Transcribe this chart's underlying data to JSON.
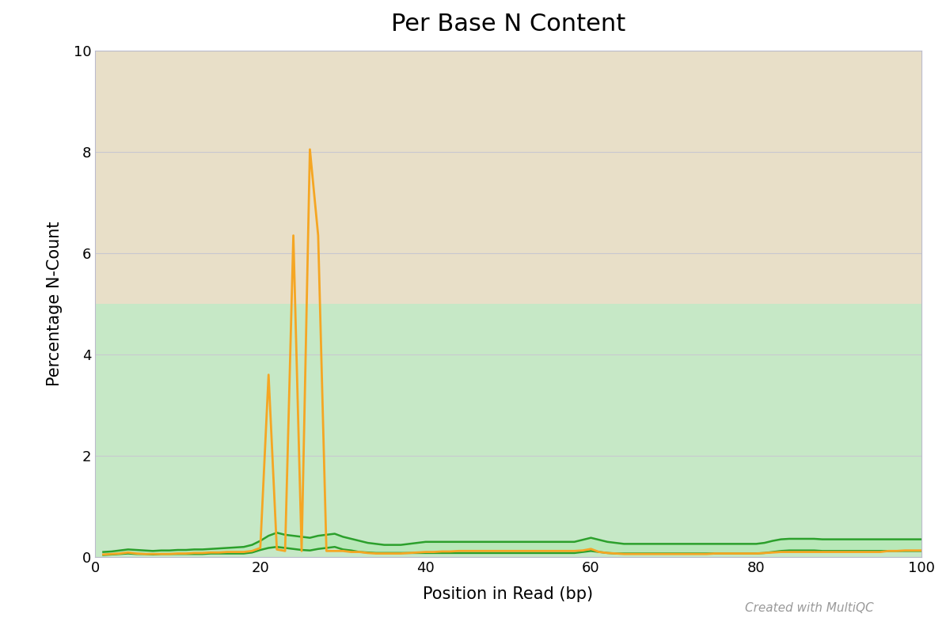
{
  "title": "Per Base N Content",
  "xlabel": "Position in Read (bp)",
  "ylabel": "Percentage N-Count",
  "xlim": [
    1,
    100
  ],
  "ylim": [
    0,
    10
  ],
  "yticks": [
    0,
    2,
    4,
    6,
    8,
    10
  ],
  "xticks": [
    0,
    20,
    40,
    60,
    80,
    100
  ],
  "zone_warn_color": "#e8dfc8",
  "zone_pass_color": "#c6e8c6",
  "zone_pass_limit": 5,
  "zone_warn_limit": 10,
  "grid_color": "#c8c8d0",
  "orange_line_color": "#f5a623",
  "green_line_color": "#2ca02c",
  "green_fill_color": "#b8e8b8",
  "watermark": "Created with MultiQC",
  "title_fontsize": 22,
  "label_fontsize": 15,
  "tick_fontsize": 13,
  "watermark_fontsize": 11,
  "orange_series": [
    [
      1,
      0.05
    ],
    [
      2,
      0.06
    ],
    [
      3,
      0.07
    ],
    [
      4,
      0.09
    ],
    [
      5,
      0.07
    ],
    [
      6,
      0.06
    ],
    [
      7,
      0.06
    ],
    [
      8,
      0.06
    ],
    [
      9,
      0.06
    ],
    [
      10,
      0.07
    ],
    [
      11,
      0.07
    ],
    [
      12,
      0.08
    ],
    [
      13,
      0.08
    ],
    [
      14,
      0.09
    ],
    [
      15,
      0.09
    ],
    [
      16,
      0.1
    ],
    [
      17,
      0.1
    ],
    [
      18,
      0.1
    ],
    [
      19,
      0.12
    ],
    [
      20,
      0.18
    ],
    [
      21,
      3.6
    ],
    [
      22,
      0.15
    ],
    [
      23,
      0.12
    ],
    [
      24,
      6.35
    ],
    [
      25,
      0.12
    ],
    [
      26,
      8.05
    ],
    [
      27,
      6.35
    ],
    [
      28,
      0.12
    ],
    [
      29,
      0.12
    ],
    [
      30,
      0.12
    ],
    [
      31,
      0.1
    ],
    [
      32,
      0.1
    ],
    [
      33,
      0.08
    ],
    [
      34,
      0.07
    ],
    [
      35,
      0.07
    ],
    [
      36,
      0.07
    ],
    [
      37,
      0.07
    ],
    [
      38,
      0.08
    ],
    [
      39,
      0.09
    ],
    [
      40,
      0.1
    ],
    [
      41,
      0.1
    ],
    [
      42,
      0.11
    ],
    [
      43,
      0.11
    ],
    [
      44,
      0.12
    ],
    [
      45,
      0.12
    ],
    [
      46,
      0.12
    ],
    [
      47,
      0.12
    ],
    [
      48,
      0.12
    ],
    [
      49,
      0.12
    ],
    [
      50,
      0.12
    ],
    [
      51,
      0.12
    ],
    [
      52,
      0.12
    ],
    [
      53,
      0.12
    ],
    [
      54,
      0.12
    ],
    [
      55,
      0.12
    ],
    [
      56,
      0.12
    ],
    [
      57,
      0.12
    ],
    [
      58,
      0.12
    ],
    [
      59,
      0.13
    ],
    [
      60,
      0.16
    ],
    [
      61,
      0.1
    ],
    [
      62,
      0.08
    ],
    [
      63,
      0.07
    ],
    [
      64,
      0.06
    ],
    [
      65,
      0.06
    ],
    [
      66,
      0.06
    ],
    [
      67,
      0.06
    ],
    [
      68,
      0.06
    ],
    [
      69,
      0.06
    ],
    [
      70,
      0.06
    ],
    [
      71,
      0.06
    ],
    [
      72,
      0.06
    ],
    [
      73,
      0.06
    ],
    [
      74,
      0.06
    ],
    [
      75,
      0.07
    ],
    [
      76,
      0.07
    ],
    [
      77,
      0.07
    ],
    [
      78,
      0.07
    ],
    [
      79,
      0.07
    ],
    [
      80,
      0.07
    ],
    [
      81,
      0.08
    ],
    [
      82,
      0.09
    ],
    [
      83,
      0.1
    ],
    [
      84,
      0.1
    ],
    [
      85,
      0.1
    ],
    [
      86,
      0.1
    ],
    [
      87,
      0.1
    ],
    [
      88,
      0.1
    ],
    [
      89,
      0.1
    ],
    [
      90,
      0.1
    ],
    [
      91,
      0.1
    ],
    [
      92,
      0.1
    ],
    [
      93,
      0.1
    ],
    [
      94,
      0.1
    ],
    [
      95,
      0.1
    ],
    [
      96,
      0.12
    ],
    [
      97,
      0.12
    ],
    [
      98,
      0.13
    ],
    [
      99,
      0.13
    ],
    [
      100,
      0.13
    ]
  ],
  "green_upper": [
    [
      1,
      0.1
    ],
    [
      2,
      0.11
    ],
    [
      3,
      0.13
    ],
    [
      4,
      0.15
    ],
    [
      5,
      0.14
    ],
    [
      6,
      0.13
    ],
    [
      7,
      0.12
    ],
    [
      8,
      0.13
    ],
    [
      9,
      0.13
    ],
    [
      10,
      0.14
    ],
    [
      11,
      0.14
    ],
    [
      12,
      0.15
    ],
    [
      13,
      0.15
    ],
    [
      14,
      0.16
    ],
    [
      15,
      0.17
    ],
    [
      16,
      0.18
    ],
    [
      17,
      0.19
    ],
    [
      18,
      0.2
    ],
    [
      19,
      0.24
    ],
    [
      20,
      0.32
    ],
    [
      21,
      0.42
    ],
    [
      22,
      0.48
    ],
    [
      23,
      0.44
    ],
    [
      24,
      0.42
    ],
    [
      25,
      0.4
    ],
    [
      26,
      0.38
    ],
    [
      27,
      0.42
    ],
    [
      28,
      0.44
    ],
    [
      29,
      0.46
    ],
    [
      30,
      0.4
    ],
    [
      31,
      0.36
    ],
    [
      32,
      0.32
    ],
    [
      33,
      0.28
    ],
    [
      34,
      0.26
    ],
    [
      35,
      0.24
    ],
    [
      36,
      0.24
    ],
    [
      37,
      0.24
    ],
    [
      38,
      0.26
    ],
    [
      39,
      0.28
    ],
    [
      40,
      0.3
    ],
    [
      41,
      0.3
    ],
    [
      42,
      0.3
    ],
    [
      43,
      0.3
    ],
    [
      44,
      0.3
    ],
    [
      45,
      0.3
    ],
    [
      46,
      0.3
    ],
    [
      47,
      0.3
    ],
    [
      48,
      0.3
    ],
    [
      49,
      0.3
    ],
    [
      50,
      0.3
    ],
    [
      51,
      0.3
    ],
    [
      52,
      0.3
    ],
    [
      53,
      0.3
    ],
    [
      54,
      0.3
    ],
    [
      55,
      0.3
    ],
    [
      56,
      0.3
    ],
    [
      57,
      0.3
    ],
    [
      58,
      0.3
    ],
    [
      59,
      0.34
    ],
    [
      60,
      0.38
    ],
    [
      61,
      0.34
    ],
    [
      62,
      0.3
    ],
    [
      63,
      0.28
    ],
    [
      64,
      0.26
    ],
    [
      65,
      0.26
    ],
    [
      66,
      0.26
    ],
    [
      67,
      0.26
    ],
    [
      68,
      0.26
    ],
    [
      69,
      0.26
    ],
    [
      70,
      0.26
    ],
    [
      71,
      0.26
    ],
    [
      72,
      0.26
    ],
    [
      73,
      0.26
    ],
    [
      74,
      0.26
    ],
    [
      75,
      0.26
    ],
    [
      76,
      0.26
    ],
    [
      77,
      0.26
    ],
    [
      78,
      0.26
    ],
    [
      79,
      0.26
    ],
    [
      80,
      0.26
    ],
    [
      81,
      0.28
    ],
    [
      82,
      0.32
    ],
    [
      83,
      0.35
    ],
    [
      84,
      0.36
    ],
    [
      85,
      0.36
    ],
    [
      86,
      0.36
    ],
    [
      87,
      0.36
    ],
    [
      88,
      0.35
    ],
    [
      89,
      0.35
    ],
    [
      90,
      0.35
    ],
    [
      91,
      0.35
    ],
    [
      92,
      0.35
    ],
    [
      93,
      0.35
    ],
    [
      94,
      0.35
    ],
    [
      95,
      0.35
    ],
    [
      96,
      0.35
    ],
    [
      97,
      0.35
    ],
    [
      98,
      0.35
    ],
    [
      99,
      0.35
    ],
    [
      100,
      0.35
    ]
  ],
  "green_lower": [
    [
      1,
      0.04
    ],
    [
      2,
      0.05
    ],
    [
      3,
      0.06
    ],
    [
      4,
      0.07
    ],
    [
      5,
      0.06
    ],
    [
      6,
      0.06
    ],
    [
      7,
      0.05
    ],
    [
      8,
      0.06
    ],
    [
      9,
      0.06
    ],
    [
      10,
      0.06
    ],
    [
      11,
      0.06
    ],
    [
      12,
      0.06
    ],
    [
      13,
      0.06
    ],
    [
      14,
      0.07
    ],
    [
      15,
      0.07
    ],
    [
      16,
      0.07
    ],
    [
      17,
      0.07
    ],
    [
      18,
      0.07
    ],
    [
      19,
      0.09
    ],
    [
      20,
      0.14
    ],
    [
      21,
      0.18
    ],
    [
      22,
      0.2
    ],
    [
      23,
      0.18
    ],
    [
      24,
      0.16
    ],
    [
      25,
      0.14
    ],
    [
      26,
      0.13
    ],
    [
      27,
      0.16
    ],
    [
      28,
      0.18
    ],
    [
      29,
      0.2
    ],
    [
      30,
      0.15
    ],
    [
      31,
      0.13
    ],
    [
      32,
      0.1
    ],
    [
      33,
      0.09
    ],
    [
      34,
      0.08
    ],
    [
      35,
      0.08
    ],
    [
      36,
      0.08
    ],
    [
      37,
      0.08
    ],
    [
      38,
      0.08
    ],
    [
      39,
      0.08
    ],
    [
      40,
      0.08
    ],
    [
      41,
      0.08
    ],
    [
      42,
      0.08
    ],
    [
      43,
      0.08
    ],
    [
      44,
      0.08
    ],
    [
      45,
      0.08
    ],
    [
      46,
      0.08
    ],
    [
      47,
      0.08
    ],
    [
      48,
      0.08
    ],
    [
      49,
      0.08
    ],
    [
      50,
      0.08
    ],
    [
      51,
      0.08
    ],
    [
      52,
      0.08
    ],
    [
      53,
      0.08
    ],
    [
      54,
      0.08
    ],
    [
      55,
      0.08
    ],
    [
      56,
      0.08
    ],
    [
      57,
      0.08
    ],
    [
      58,
      0.08
    ],
    [
      59,
      0.1
    ],
    [
      60,
      0.12
    ],
    [
      61,
      0.1
    ],
    [
      62,
      0.08
    ],
    [
      63,
      0.07
    ],
    [
      64,
      0.07
    ],
    [
      65,
      0.07
    ],
    [
      66,
      0.07
    ],
    [
      67,
      0.07
    ],
    [
      68,
      0.07
    ],
    [
      69,
      0.07
    ],
    [
      70,
      0.07
    ],
    [
      71,
      0.07
    ],
    [
      72,
      0.07
    ],
    [
      73,
      0.07
    ],
    [
      74,
      0.07
    ],
    [
      75,
      0.07
    ],
    [
      76,
      0.07
    ],
    [
      77,
      0.07
    ],
    [
      78,
      0.07
    ],
    [
      79,
      0.07
    ],
    [
      80,
      0.07
    ],
    [
      81,
      0.08
    ],
    [
      82,
      0.1
    ],
    [
      83,
      0.12
    ],
    [
      84,
      0.13
    ],
    [
      85,
      0.13
    ],
    [
      86,
      0.13
    ],
    [
      87,
      0.13
    ],
    [
      88,
      0.12
    ],
    [
      89,
      0.12
    ],
    [
      90,
      0.12
    ],
    [
      91,
      0.12
    ],
    [
      92,
      0.12
    ],
    [
      93,
      0.12
    ],
    [
      94,
      0.12
    ],
    [
      95,
      0.12
    ],
    [
      96,
      0.12
    ],
    [
      97,
      0.12
    ],
    [
      98,
      0.12
    ],
    [
      99,
      0.12
    ],
    [
      100,
      0.12
    ]
  ]
}
